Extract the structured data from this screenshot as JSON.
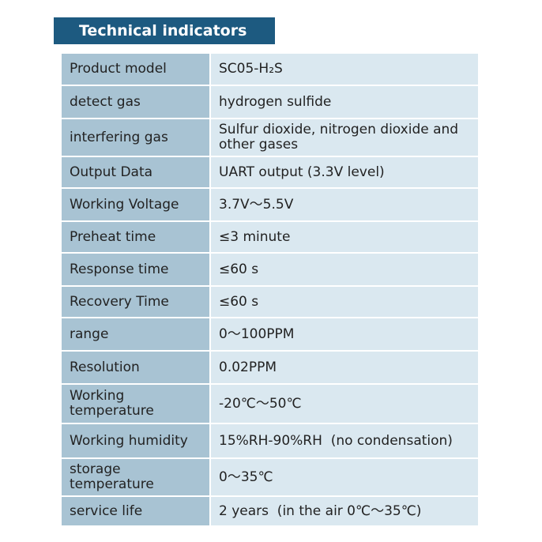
{
  "header": {
    "title": "Technical indicators"
  },
  "table": {
    "rows": [
      [
        "Product model",
        "SC05-H₂S"
      ],
      [
        "detect gas",
        "hydrogen sulfide"
      ],
      [
        "interfering gas",
        "Sulfur dioxide, nitrogen dioxide and other gases"
      ],
      [
        "Output Data",
        "UART output (3.3V level)"
      ],
      [
        "Working Voltage",
        "3.7V～5.5V"
      ],
      [
        "Preheat time",
        "≤3 minute"
      ],
      [
        "Response time",
        "≤60 s"
      ],
      [
        "Recovery Time",
        "≤60 s"
      ],
      [
        "range",
        "0～100PPM"
      ],
      [
        "Resolution",
        "0.02PPM"
      ],
      [
        "Working temperature",
        "-20℃～50℃"
      ],
      [
        "Working humidity",
        "15%RH-90%RH  (no condensation)"
      ],
      [
        "storage temperature",
        "0～35℃"
      ],
      [
        "service life",
        "2 years  (in the air 0℃～35℃)"
      ]
    ]
  }
}
